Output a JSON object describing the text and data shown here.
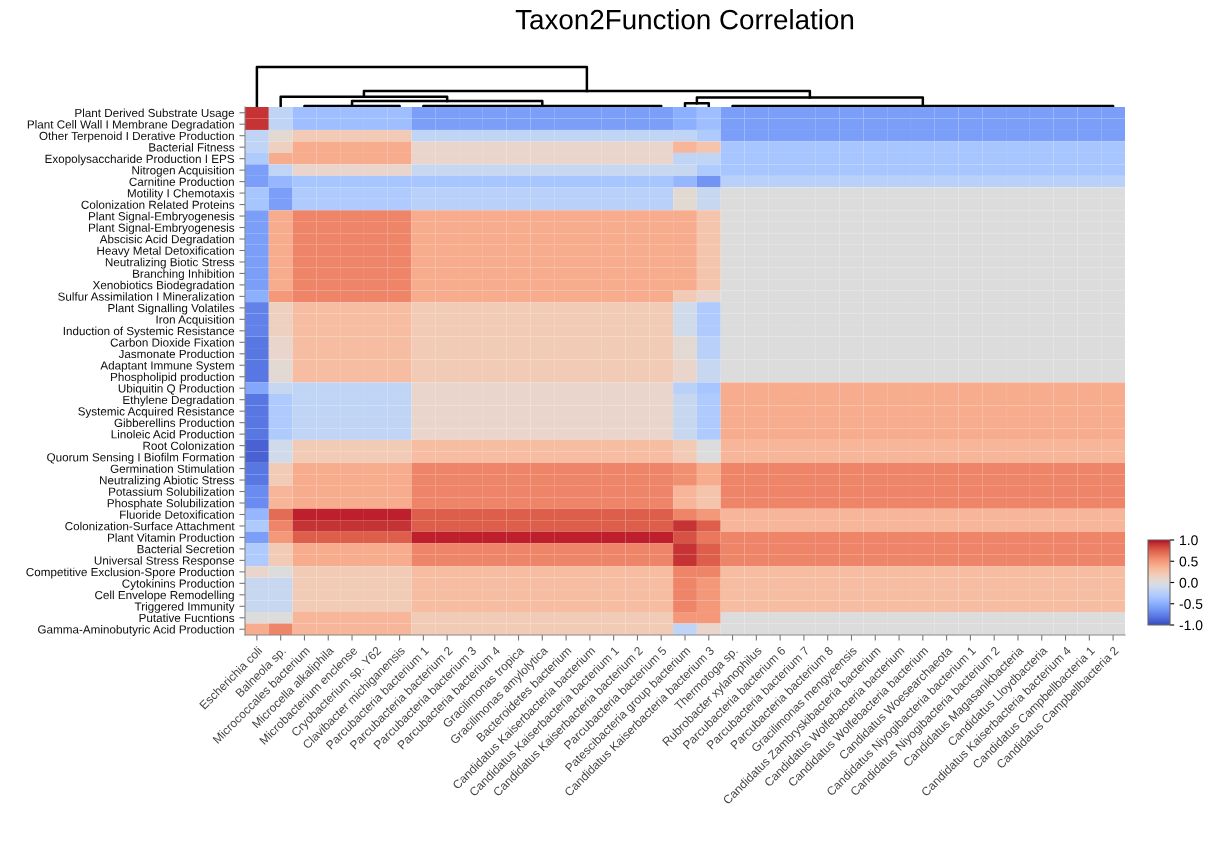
{
  "chart_data": {
    "type": "heatmap",
    "title": "Taxon2Function Correlation",
    "categories": [
      "Escherichia coli",
      "Balneola sp.",
      "Micrococcales bacterium",
      "Microcella alkaliphila",
      "Microbacterium enclense",
      "Cryobacterium sp. Y62",
      "Clavibacter michiganensis",
      "Parcubacteria bacterium 1",
      "Parcubacteria bacterium 2",
      "Parcubacteria bacterium 3",
      "Parcubacteria bacterium 4",
      "Gracilimonas tropica",
      "Gracilimonas amylolytica",
      "Bacteroidetes bacterium",
      "Candidatus Kaiserbacteria bacterium",
      "Candidatus Kaiserbacteria bacterium 1",
      "Candidatus Kaiserbacteria bacterium 2",
      "Parcubacteria bacterium 5",
      "Patescibacteria group bacterium",
      "Candidatus Kaiserbacteria bacterium 3",
      "Thermotoga sp.",
      "Rubrobacter xylanophilus",
      "Parcubacteria bacterium 6",
      "Parcubacteria bacterium 7",
      "Parcubacteria bacterium 8",
      "Gracilimonas mengyeensis",
      "Candidatus Zambryskibacteria bacterium",
      "Candidatus Wolfebacteria bacterium",
      "Candidatus Wolfebacteria bacterium",
      "Candidatus Woesearchaeota",
      "Candidatus Niyogibacteria bacterium 1",
      "Candidatus Niyogibacteria bacterium 2",
      "Candidatus Magasanikbacteria",
      "Candidatus Lloydbacteria",
      "Candidatus Kaiserbacteria bacterium 4",
      "Candidatus Campbellbacteria 1",
      "Candidatus Campbellbacteria 2"
    ],
    "y_categories": [
      "Plant Derived Substrate Usage",
      "Plant Cell Wall I Membrane Degradation",
      "Other Terpenoid I Derative Production",
      "Bacterial Fitness",
      "Exopolysaccharide Production I EPS",
      "Nitrogen Acquisition",
      "Carnitine Production",
      "Motility I Chemotaxis",
      "Colonization Related Proteins",
      "Plant Signal-Embryogenesis",
      "Plant Signal-Embryogenesis",
      "Abscisic Acid Degradation",
      "Heavy Metal Detoxification",
      "Neutralizing Biotic Stress",
      "Branching Inhibition",
      "Xenobiotics Biodegradation",
      "Sulfur Assimilation I Mineralization",
      "Plant Signalling Volatiles",
      "Iron Acquisition",
      "Induction of Systemic Resistance",
      "Carbon Dioxide Fixation",
      "Jasmonate Production",
      "Adaptant Immune System",
      "Phospholipid production",
      "Ubiquitin Q Production",
      "Ethylene Degradation",
      "Systemic Acquired Resistance",
      "Gibberellins Production",
      "Linoleic Acid Production",
      "Root Colonization",
      "Quorum Sensing I Biofilm Formation",
      "Germination Stimulation",
      "Neutralizing Abiotic Stress",
      "Potassium Solubilization",
      "Phosphate Solubilization",
      "Fluoride Detoxification",
      "Colonization-Surface Attachment",
      "Plant Vitamin Production",
      "Bacterial Secretion",
      "Universal Stress Response",
      "Competitive Exclusion-Spore Production",
      "Cytokinins Production",
      "Cell Envelope Remodelling",
      "Triggered Immunity",
      "Putative Fucntions",
      "Gamma-Aminobutyric Acid Production"
    ],
    "cells": [
      [
        0.9,
        -0.2,
        -0.4,
        -0.4,
        -0.4,
        -0.4,
        -0.4,
        -0.6,
        -0.6,
        -0.6,
        -0.6,
        -0.6,
        -0.6,
        -0.6,
        -0.6,
        -0.6,
        -0.6,
        -0.6,
        -0.5,
        -0.4,
        -0.6,
        -0.6,
        -0.6,
        -0.6,
        -0.6,
        -0.6,
        -0.6,
        -0.6,
        -0.6,
        -0.6,
        -0.6,
        -0.6,
        -0.6,
        -0.6,
        -0.6,
        -0.6,
        -0.6
      ],
      [
        0.9,
        -0.2,
        -0.4,
        -0.4,
        -0.4,
        -0.4,
        -0.4,
        -0.6,
        -0.6,
        -0.6,
        -0.6,
        -0.6,
        -0.6,
        -0.6,
        -0.6,
        -0.6,
        -0.6,
        -0.6,
        -0.5,
        -0.4,
        -0.6,
        -0.6,
        -0.6,
        -0.6,
        -0.6,
        -0.6,
        -0.6,
        -0.6,
        -0.6,
        -0.6,
        -0.6,
        -0.6,
        -0.6,
        -0.6,
        -0.6,
        -0.6,
        -0.6
      ],
      [
        -0.2,
        0.05,
        0.2,
        0.2,
        0.2,
        0.2,
        0.2,
        -0.2,
        -0.2,
        -0.2,
        -0.2,
        -0.2,
        -0.2,
        -0.2,
        -0.2,
        -0.2,
        -0.2,
        -0.2,
        -0.2,
        -0.3,
        -0.6,
        -0.6,
        -0.6,
        -0.6,
        -0.6,
        -0.6,
        -0.6,
        -0.6,
        -0.6,
        -0.6,
        -0.6,
        -0.6,
        -0.6,
        -0.6,
        -0.6,
        -0.6,
        -0.6
      ],
      [
        -0.2,
        0.15,
        0.4,
        0.4,
        0.4,
        0.4,
        0.4,
        0.1,
        0.1,
        0.1,
        0.1,
        0.1,
        0.1,
        0.1,
        0.1,
        0.1,
        0.1,
        0.1,
        0.35,
        0.25,
        -0.35,
        -0.35,
        -0.35,
        -0.35,
        -0.35,
        -0.35,
        -0.35,
        -0.35,
        -0.35,
        -0.35,
        -0.35,
        -0.35,
        -0.35,
        -0.35,
        -0.35,
        -0.35,
        -0.35
      ],
      [
        -0.3,
        0.4,
        0.4,
        0.4,
        0.4,
        0.4,
        0.4,
        0.1,
        0.1,
        0.1,
        0.1,
        0.1,
        0.1,
        0.1,
        0.1,
        0.1,
        0.1,
        0.1,
        -0.2,
        -0.2,
        -0.35,
        -0.35,
        -0.35,
        -0.35,
        -0.35,
        -0.35,
        -0.35,
        -0.35,
        -0.35,
        -0.35,
        -0.35,
        -0.35,
        -0.35,
        -0.35,
        -0.35,
        -0.35,
        -0.35
      ],
      [
        -0.6,
        -0.2,
        0.1,
        0.1,
        0.1,
        0.1,
        0.1,
        -0.15,
        -0.15,
        -0.15,
        -0.15,
        -0.15,
        -0.15,
        -0.15,
        -0.15,
        -0.15,
        -0.15,
        -0.15,
        -0.15,
        -0.3,
        -0.35,
        -0.35,
        -0.35,
        -0.35,
        -0.35,
        -0.35,
        -0.35,
        -0.35,
        -0.35,
        -0.35,
        -0.35,
        -0.35,
        -0.35,
        -0.35,
        -0.35,
        -0.35,
        -0.35
      ],
      [
        -0.6,
        -0.45,
        -0.35,
        -0.35,
        -0.35,
        -0.35,
        -0.35,
        -0.35,
        -0.35,
        -0.35,
        -0.35,
        -0.35,
        -0.35,
        -0.35,
        -0.35,
        -0.35,
        -0.35,
        -0.35,
        -0.45,
        -0.65,
        -0.25,
        -0.25,
        -0.25,
        -0.25,
        -0.25,
        -0.25,
        -0.25,
        -0.25,
        -0.25,
        -0.25,
        -0.25,
        -0.25,
        -0.25,
        -0.25,
        -0.25,
        -0.25,
        -0.25
      ],
      [
        -0.35,
        -0.6,
        -0.3,
        -0.3,
        -0.3,
        -0.3,
        -0.3,
        -0.25,
        -0.25,
        -0.25,
        -0.25,
        -0.25,
        -0.25,
        -0.25,
        -0.25,
        -0.25,
        -0.25,
        -0.25,
        0.05,
        -0.15,
        0,
        0,
        0,
        0,
        0,
        0,
        0,
        0,
        0,
        0,
        0,
        0,
        0,
        0,
        0,
        0,
        0
      ],
      [
        -0.35,
        -0.6,
        -0.3,
        -0.3,
        -0.3,
        -0.3,
        -0.3,
        -0.25,
        -0.25,
        -0.25,
        -0.25,
        -0.25,
        -0.25,
        -0.25,
        -0.25,
        -0.25,
        -0.25,
        -0.25,
        0.05,
        -0.15,
        0,
        0,
        0,
        0,
        0,
        0,
        0,
        0,
        0,
        0,
        0,
        0,
        0,
        0,
        0,
        0,
        0
      ],
      [
        -0.6,
        0.4,
        0.6,
        0.6,
        0.6,
        0.6,
        0.6,
        0.4,
        0.4,
        0.4,
        0.4,
        0.4,
        0.4,
        0.4,
        0.4,
        0.4,
        0.4,
        0.4,
        0.4,
        0.25,
        0,
        0,
        0,
        0,
        0,
        0,
        0,
        0,
        0,
        0,
        0,
        0,
        0,
        0,
        0,
        0,
        0
      ],
      [
        -0.6,
        0.4,
        0.6,
        0.6,
        0.6,
        0.6,
        0.6,
        0.4,
        0.4,
        0.4,
        0.4,
        0.4,
        0.4,
        0.4,
        0.4,
        0.4,
        0.4,
        0.4,
        0.4,
        0.25,
        0,
        0,
        0,
        0,
        0,
        0,
        0,
        0,
        0,
        0,
        0,
        0,
        0,
        0,
        0,
        0,
        0
      ],
      [
        -0.6,
        0.4,
        0.6,
        0.6,
        0.6,
        0.6,
        0.6,
        0.4,
        0.4,
        0.4,
        0.4,
        0.4,
        0.4,
        0.4,
        0.4,
        0.4,
        0.4,
        0.4,
        0.4,
        0.25,
        0,
        0,
        0,
        0,
        0,
        0,
        0,
        0,
        0,
        0,
        0,
        0,
        0,
        0,
        0,
        0,
        0
      ],
      [
        -0.6,
        0.4,
        0.6,
        0.6,
        0.6,
        0.6,
        0.6,
        0.4,
        0.4,
        0.4,
        0.4,
        0.4,
        0.4,
        0.4,
        0.4,
        0.4,
        0.4,
        0.4,
        0.4,
        0.25,
        0,
        0,
        0,
        0,
        0,
        0,
        0,
        0,
        0,
        0,
        0,
        0,
        0,
        0,
        0,
        0,
        0
      ],
      [
        -0.6,
        0.4,
        0.6,
        0.6,
        0.6,
        0.6,
        0.6,
        0.4,
        0.4,
        0.4,
        0.4,
        0.4,
        0.4,
        0.4,
        0.4,
        0.4,
        0.4,
        0.4,
        0.4,
        0.25,
        0,
        0,
        0,
        0,
        0,
        0,
        0,
        0,
        0,
        0,
        0,
        0,
        0,
        0,
        0,
        0,
        0
      ],
      [
        -0.6,
        0.4,
        0.6,
        0.6,
        0.6,
        0.6,
        0.6,
        0.4,
        0.4,
        0.4,
        0.4,
        0.4,
        0.4,
        0.4,
        0.4,
        0.4,
        0.4,
        0.4,
        0.4,
        0.25,
        0,
        0,
        0,
        0,
        0,
        0,
        0,
        0,
        0,
        0,
        0,
        0,
        0,
        0,
        0,
        0,
        0
      ],
      [
        -0.6,
        0.4,
        0.6,
        0.6,
        0.6,
        0.6,
        0.6,
        0.4,
        0.4,
        0.4,
        0.4,
        0.4,
        0.4,
        0.4,
        0.4,
        0.4,
        0.4,
        0.4,
        0.4,
        0.25,
        0,
        0,
        0,
        0,
        0,
        0,
        0,
        0,
        0,
        0,
        0,
        0,
        0,
        0,
        0,
        0,
        0
      ],
      [
        -0.5,
        0.5,
        0.6,
        0.6,
        0.6,
        0.6,
        0.6,
        0.4,
        0.4,
        0.4,
        0.4,
        0.4,
        0.4,
        0.4,
        0.4,
        0.4,
        0.4,
        0.4,
        0.2,
        0.1,
        0,
        0,
        0,
        0,
        0,
        0,
        0,
        0,
        0,
        0,
        0,
        0,
        0,
        0,
        0,
        0,
        0
      ],
      [
        -0.75,
        0.15,
        0.3,
        0.3,
        0.3,
        0.3,
        0.3,
        0.2,
        0.2,
        0.2,
        0.2,
        0.2,
        0.2,
        0.2,
        0.2,
        0.2,
        0.2,
        0.2,
        -0.1,
        -0.3,
        0,
        0,
        0,
        0,
        0,
        0,
        0,
        0,
        0,
        0,
        0,
        0,
        0,
        0,
        0,
        0,
        0
      ],
      [
        -0.75,
        0.15,
        0.3,
        0.3,
        0.3,
        0.3,
        0.3,
        0.2,
        0.2,
        0.2,
        0.2,
        0.2,
        0.2,
        0.2,
        0.2,
        0.2,
        0.2,
        0.2,
        -0.1,
        -0.3,
        0,
        0,
        0,
        0,
        0,
        0,
        0,
        0,
        0,
        0,
        0,
        0,
        0,
        0,
        0,
        0,
        0
      ],
      [
        -0.75,
        0.15,
        0.3,
        0.3,
        0.3,
        0.3,
        0.3,
        0.2,
        0.2,
        0.2,
        0.2,
        0.2,
        0.2,
        0.2,
        0.2,
        0.2,
        0.2,
        0.2,
        -0.1,
        -0.3,
        0,
        0,
        0,
        0,
        0,
        0,
        0,
        0,
        0,
        0,
        0,
        0,
        0,
        0,
        0,
        0,
        0
      ],
      [
        -0.8,
        0.1,
        0.3,
        0.3,
        0.3,
        0.3,
        0.3,
        0.2,
        0.2,
        0.2,
        0.2,
        0.2,
        0.2,
        0.2,
        0.2,
        0.2,
        0.2,
        0.2,
        0.05,
        -0.25,
        0,
        0,
        0,
        0,
        0,
        0,
        0,
        0,
        0,
        0,
        0,
        0,
        0,
        0,
        0,
        0,
        0
      ],
      [
        -0.8,
        0.1,
        0.3,
        0.3,
        0.3,
        0.3,
        0.3,
        0.2,
        0.2,
        0.2,
        0.2,
        0.2,
        0.2,
        0.2,
        0.2,
        0.2,
        0.2,
        0.2,
        0.05,
        -0.25,
        0,
        0,
        0,
        0,
        0,
        0,
        0,
        0,
        0,
        0,
        0,
        0,
        0,
        0,
        0,
        0,
        0
      ],
      [
        -0.8,
        0.05,
        0.3,
        0.3,
        0.3,
        0.3,
        0.3,
        0.2,
        0.2,
        0.2,
        0.2,
        0.2,
        0.2,
        0.2,
        0.2,
        0.2,
        0.2,
        0.2,
        0.1,
        -0.15,
        0,
        0,
        0,
        0,
        0,
        0,
        0,
        0,
        0,
        0,
        0,
        0,
        0,
        0,
        0,
        0,
        0
      ],
      [
        -0.8,
        0.05,
        0.3,
        0.3,
        0.3,
        0.3,
        0.3,
        0.2,
        0.2,
        0.2,
        0.2,
        0.2,
        0.2,
        0.2,
        0.2,
        0.2,
        0.2,
        0.2,
        0.1,
        -0.15,
        0,
        0,
        0,
        0,
        0,
        0,
        0,
        0,
        0,
        0,
        0,
        0,
        0,
        0,
        0,
        0,
        0
      ],
      [
        -0.55,
        -0.15,
        -0.2,
        -0.2,
        -0.2,
        -0.2,
        -0.2,
        0.1,
        0.1,
        0.1,
        0.1,
        0.1,
        0.1,
        0.1,
        0.1,
        0.1,
        0.1,
        0.1,
        -0.25,
        -0.35,
        0.4,
        0.4,
        0.4,
        0.4,
        0.4,
        0.4,
        0.4,
        0.4,
        0.4,
        0.4,
        0.4,
        0.4,
        0.4,
        0.4,
        0.4,
        0.4,
        0.4
      ],
      [
        -0.8,
        -0.3,
        -0.2,
        -0.2,
        -0.2,
        -0.2,
        -0.2,
        0.1,
        0.1,
        0.1,
        0.1,
        0.1,
        0.1,
        0.1,
        0.1,
        0.1,
        0.1,
        0.1,
        -0.15,
        -0.3,
        0.4,
        0.4,
        0.4,
        0.4,
        0.4,
        0.4,
        0.4,
        0.4,
        0.4,
        0.4,
        0.4,
        0.4,
        0.4,
        0.4,
        0.4,
        0.4,
        0.4
      ],
      [
        -0.8,
        -0.3,
        -0.2,
        -0.2,
        -0.2,
        -0.2,
        -0.2,
        0.1,
        0.1,
        0.1,
        0.1,
        0.1,
        0.1,
        0.1,
        0.1,
        0.1,
        0.1,
        0.1,
        -0.15,
        -0.3,
        0.4,
        0.4,
        0.4,
        0.4,
        0.4,
        0.4,
        0.4,
        0.4,
        0.4,
        0.4,
        0.4,
        0.4,
        0.4,
        0.4,
        0.4,
        0.4,
        0.4
      ],
      [
        -0.8,
        -0.3,
        -0.2,
        -0.2,
        -0.2,
        -0.2,
        -0.2,
        0.1,
        0.1,
        0.1,
        0.1,
        0.1,
        0.1,
        0.1,
        0.1,
        0.1,
        0.1,
        0.1,
        -0.15,
        -0.3,
        0.4,
        0.4,
        0.4,
        0.4,
        0.4,
        0.4,
        0.4,
        0.4,
        0.4,
        0.4,
        0.4,
        0.4,
        0.4,
        0.4,
        0.4,
        0.4,
        0.4
      ],
      [
        -0.8,
        -0.3,
        -0.2,
        -0.2,
        -0.2,
        -0.2,
        -0.2,
        0.1,
        0.1,
        0.1,
        0.1,
        0.1,
        0.1,
        0.1,
        0.1,
        0.1,
        0.1,
        0.1,
        -0.15,
        -0.3,
        0.4,
        0.4,
        0.4,
        0.4,
        0.4,
        0.4,
        0.4,
        0.4,
        0.4,
        0.4,
        0.4,
        0.4,
        0.4,
        0.4,
        0.4,
        0.4,
        0.4
      ],
      [
        -0.9,
        -0.1,
        0.2,
        0.2,
        0.2,
        0.2,
        0.2,
        0.3,
        0.3,
        0.3,
        0.3,
        0.3,
        0.3,
        0.3,
        0.3,
        0.3,
        0.3,
        0.3,
        0.2,
        0,
        0.35,
        0.35,
        0.35,
        0.35,
        0.35,
        0.35,
        0.35,
        0.35,
        0.35,
        0.35,
        0.35,
        0.35,
        0.35,
        0.35,
        0.35,
        0.35,
        0.35
      ],
      [
        -0.9,
        -0.1,
        0.2,
        0.2,
        0.2,
        0.2,
        0.2,
        0.3,
        0.3,
        0.3,
        0.3,
        0.3,
        0.3,
        0.3,
        0.3,
        0.3,
        0.3,
        0.3,
        0.2,
        0,
        0.35,
        0.35,
        0.35,
        0.35,
        0.35,
        0.35,
        0.35,
        0.35,
        0.35,
        0.35,
        0.35,
        0.35,
        0.35,
        0.35,
        0.35,
        0.35,
        0.35
      ],
      [
        -0.8,
        0.2,
        0.4,
        0.4,
        0.4,
        0.4,
        0.4,
        0.6,
        0.6,
        0.6,
        0.6,
        0.6,
        0.6,
        0.6,
        0.6,
        0.6,
        0.6,
        0.6,
        0.55,
        0.4,
        0.6,
        0.6,
        0.6,
        0.6,
        0.6,
        0.6,
        0.6,
        0.6,
        0.6,
        0.6,
        0.6,
        0.6,
        0.6,
        0.6,
        0.6,
        0.6,
        0.6
      ],
      [
        -0.8,
        0.2,
        0.4,
        0.4,
        0.4,
        0.4,
        0.4,
        0.6,
        0.6,
        0.6,
        0.6,
        0.6,
        0.6,
        0.6,
        0.6,
        0.6,
        0.6,
        0.6,
        0.55,
        0.4,
        0.6,
        0.6,
        0.6,
        0.6,
        0.6,
        0.6,
        0.6,
        0.6,
        0.6,
        0.6,
        0.6,
        0.6,
        0.6,
        0.6,
        0.6,
        0.6,
        0.6
      ],
      [
        -0.7,
        0.35,
        0.4,
        0.4,
        0.4,
        0.4,
        0.4,
        0.6,
        0.6,
        0.6,
        0.6,
        0.6,
        0.6,
        0.6,
        0.6,
        0.6,
        0.6,
        0.6,
        0.35,
        0.25,
        0.6,
        0.6,
        0.6,
        0.6,
        0.6,
        0.6,
        0.6,
        0.6,
        0.6,
        0.6,
        0.6,
        0.6,
        0.6,
        0.6,
        0.6,
        0.6,
        0.6
      ],
      [
        -0.7,
        0.35,
        0.4,
        0.4,
        0.4,
        0.4,
        0.4,
        0.6,
        0.6,
        0.6,
        0.6,
        0.6,
        0.6,
        0.6,
        0.6,
        0.6,
        0.6,
        0.6,
        0.35,
        0.25,
        0.6,
        0.6,
        0.6,
        0.6,
        0.6,
        0.6,
        0.6,
        0.6,
        0.6,
        0.6,
        0.6,
        0.6,
        0.6,
        0.6,
        0.6,
        0.6,
        0.6
      ],
      [
        -0.45,
        0.7,
        0.95,
        0.95,
        0.95,
        0.95,
        0.95,
        0.75,
        0.75,
        0.75,
        0.75,
        0.75,
        0.75,
        0.75,
        0.75,
        0.75,
        0.75,
        0.75,
        0.6,
        0.5,
        0.35,
        0.35,
        0.35,
        0.35,
        0.35,
        0.35,
        0.35,
        0.35,
        0.35,
        0.35,
        0.35,
        0.35,
        0.35,
        0.35,
        0.35,
        0.35,
        0.35
      ],
      [
        -0.3,
        0.6,
        0.9,
        0.9,
        0.9,
        0.9,
        0.9,
        0.75,
        0.75,
        0.75,
        0.75,
        0.75,
        0.75,
        0.75,
        0.75,
        0.75,
        0.75,
        0.75,
        0.9,
        0.75,
        0.35,
        0.35,
        0.35,
        0.35,
        0.35,
        0.35,
        0.35,
        0.35,
        0.35,
        0.35,
        0.35,
        0.35,
        0.35,
        0.35,
        0.35,
        0.35,
        0.35
      ],
      [
        -0.6,
        0.5,
        0.75,
        0.75,
        0.75,
        0.75,
        0.75,
        0.95,
        0.95,
        0.95,
        0.95,
        0.95,
        0.95,
        0.95,
        0.95,
        0.95,
        0.95,
        0.95,
        0.8,
        0.65,
        0.6,
        0.6,
        0.6,
        0.6,
        0.6,
        0.6,
        0.6,
        0.6,
        0.6,
        0.6,
        0.6,
        0.6,
        0.6,
        0.6,
        0.6,
        0.6,
        0.6
      ],
      [
        -0.3,
        0.2,
        0.4,
        0.4,
        0.4,
        0.4,
        0.4,
        0.6,
        0.6,
        0.6,
        0.6,
        0.6,
        0.6,
        0.6,
        0.6,
        0.6,
        0.6,
        0.6,
        0.9,
        0.75,
        0.6,
        0.6,
        0.6,
        0.6,
        0.6,
        0.6,
        0.6,
        0.6,
        0.6,
        0.6,
        0.6,
        0.6,
        0.6,
        0.6,
        0.6,
        0.6,
        0.6
      ],
      [
        -0.3,
        0.2,
        0.4,
        0.4,
        0.4,
        0.4,
        0.4,
        0.6,
        0.6,
        0.6,
        0.6,
        0.6,
        0.6,
        0.6,
        0.6,
        0.6,
        0.6,
        0.6,
        0.9,
        0.75,
        0.6,
        0.6,
        0.6,
        0.6,
        0.6,
        0.6,
        0.6,
        0.6,
        0.6,
        0.6,
        0.6,
        0.6,
        0.6,
        0.6,
        0.6,
        0.6,
        0.6
      ],
      [
        0.1,
        0,
        0.2,
        0.2,
        0.2,
        0.2,
        0.2,
        0.3,
        0.3,
        0.3,
        0.3,
        0.3,
        0.3,
        0.3,
        0.3,
        0.3,
        0.3,
        0.3,
        0.6,
        0.6,
        0.3,
        0.3,
        0.3,
        0.3,
        0.3,
        0.3,
        0.3,
        0.3,
        0.3,
        0.3,
        0.3,
        0.3,
        0.3,
        0.3,
        0.3,
        0.3,
        0.3
      ],
      [
        -0.15,
        -0.15,
        0.2,
        0.2,
        0.2,
        0.2,
        0.2,
        0.3,
        0.3,
        0.3,
        0.3,
        0.3,
        0.3,
        0.3,
        0.3,
        0.3,
        0.3,
        0.3,
        0.6,
        0.5,
        0.3,
        0.3,
        0.3,
        0.3,
        0.3,
        0.3,
        0.3,
        0.3,
        0.3,
        0.3,
        0.3,
        0.3,
        0.3,
        0.3,
        0.3,
        0.3,
        0.3
      ],
      [
        -0.15,
        -0.15,
        0.2,
        0.2,
        0.2,
        0.2,
        0.2,
        0.3,
        0.3,
        0.3,
        0.3,
        0.3,
        0.3,
        0.3,
        0.3,
        0.3,
        0.3,
        0.3,
        0.6,
        0.5,
        0.3,
        0.3,
        0.3,
        0.3,
        0.3,
        0.3,
        0.3,
        0.3,
        0.3,
        0.3,
        0.3,
        0.3,
        0.3,
        0.3,
        0.3,
        0.3,
        0.3
      ],
      [
        -0.15,
        -0.15,
        0.2,
        0.2,
        0.2,
        0.2,
        0.2,
        0.3,
        0.3,
        0.3,
        0.3,
        0.3,
        0.3,
        0.3,
        0.3,
        0.3,
        0.3,
        0.3,
        0.6,
        0.5,
        0.3,
        0.3,
        0.3,
        0.3,
        0.3,
        0.3,
        0.3,
        0.3,
        0.3,
        0.3,
        0.3,
        0.3,
        0.3,
        0.3,
        0.3,
        0.3,
        0.3
      ],
      [
        0,
        0,
        0.35,
        0.35,
        0.35,
        0.35,
        0.35,
        0.2,
        0.2,
        0.2,
        0.2,
        0.2,
        0.2,
        0.2,
        0.2,
        0.2,
        0.2,
        0.2,
        0.5,
        0.5,
        0,
        0,
        0,
        0,
        0,
        0,
        0,
        0,
        0,
        0,
        0,
        0,
        0,
        0,
        0,
        0,
        0
      ],
      [
        0.4,
        0.6,
        0.35,
        0.35,
        0.35,
        0.35,
        0.35,
        0.2,
        0.2,
        0.2,
        0.2,
        0.2,
        0.2,
        0.2,
        0.2,
        0.2,
        0.2,
        0.2,
        -0.2,
        0.1,
        0,
        0,
        0,
        0,
        0,
        0,
        0,
        0,
        0,
        0,
        0,
        0,
        0,
        0,
        0,
        0,
        0
      ]
    ],
    "clim": [
      -1,
      1
    ],
    "cticks": [
      {
        "value": -1,
        "label": "-1.0"
      },
      {
        "value": -0.5,
        "label": "-0.5"
      },
      {
        "value": 0,
        "label": "0.0"
      },
      {
        "value": 0.5,
        "label": "0.5"
      },
      {
        "value": 1,
        "label": "1.0"
      }
    ]
  }
}
